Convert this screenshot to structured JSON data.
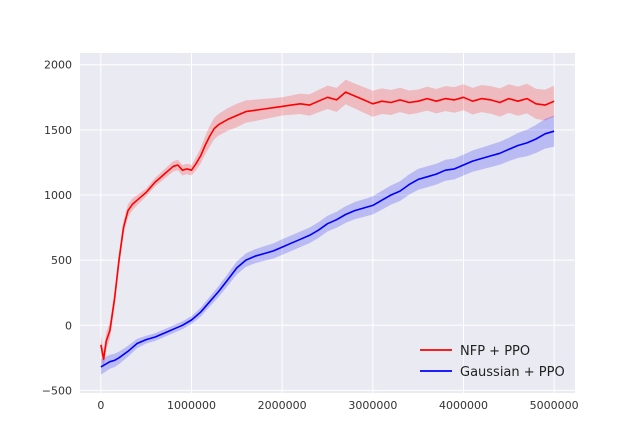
{
  "chart_data": {
    "type": "line",
    "title": "",
    "xlabel": "",
    "ylabel": "",
    "xlim": [
      -230000,
      5230000
    ],
    "ylim": [
      -520,
      2090
    ],
    "grid": true,
    "legend_position": "bottom-right",
    "x_ticks": [
      0,
      1000000,
      2000000,
      3000000,
      4000000,
      5000000
    ],
    "x_tick_labels": [
      "0",
      "1000000",
      "2000000",
      "3000000",
      "4000000",
      "5000000"
    ],
    "y_ticks": [
      -500,
      0,
      500,
      1000,
      1500,
      2000
    ],
    "y_tick_labels": [
      "−500",
      "0",
      "500",
      "1000",
      "1500",
      "2000"
    ],
    "series": [
      {
        "name": "NFP + PPO",
        "color": "#ff0000",
        "band_color": "#ff0000",
        "points": [
          [
            0,
            -150
          ],
          [
            30000,
            -260
          ],
          [
            60000,
            -120
          ],
          [
            100000,
            -40
          ],
          [
            150000,
            200
          ],
          [
            200000,
            500
          ],
          [
            250000,
            750
          ],
          [
            300000,
            880
          ],
          [
            350000,
            930
          ],
          [
            400000,
            960
          ],
          [
            450000,
            990
          ],
          [
            500000,
            1020
          ],
          [
            550000,
            1060
          ],
          [
            600000,
            1100
          ],
          [
            650000,
            1130
          ],
          [
            700000,
            1160
          ],
          [
            750000,
            1190
          ],
          [
            800000,
            1220
          ],
          [
            850000,
            1230
          ],
          [
            900000,
            1190
          ],
          [
            950000,
            1200
          ],
          [
            1000000,
            1190
          ],
          [
            1050000,
            1240
          ],
          [
            1100000,
            1300
          ],
          [
            1150000,
            1380
          ],
          [
            1200000,
            1450
          ],
          [
            1250000,
            1510
          ],
          [
            1300000,
            1540
          ],
          [
            1400000,
            1580
          ],
          [
            1500000,
            1610
          ],
          [
            1600000,
            1640
          ],
          [
            1700000,
            1650
          ],
          [
            1800000,
            1660
          ],
          [
            1900000,
            1670
          ],
          [
            2000000,
            1680
          ],
          [
            2100000,
            1690
          ],
          [
            2200000,
            1700
          ],
          [
            2300000,
            1690
          ],
          [
            2400000,
            1720
          ],
          [
            2500000,
            1750
          ],
          [
            2600000,
            1730
          ],
          [
            2700000,
            1790
          ],
          [
            2800000,
            1760
          ],
          [
            2900000,
            1730
          ],
          [
            3000000,
            1700
          ],
          [
            3100000,
            1720
          ],
          [
            3200000,
            1710
          ],
          [
            3300000,
            1730
          ],
          [
            3400000,
            1710
          ],
          [
            3500000,
            1720
          ],
          [
            3600000,
            1740
          ],
          [
            3700000,
            1720
          ],
          [
            3800000,
            1740
          ],
          [
            3900000,
            1730
          ],
          [
            4000000,
            1750
          ],
          [
            4100000,
            1720
          ],
          [
            4200000,
            1740
          ],
          [
            4300000,
            1730
          ],
          [
            4400000,
            1710
          ],
          [
            4500000,
            1740
          ],
          [
            4600000,
            1720
          ],
          [
            4700000,
            1740
          ],
          [
            4800000,
            1700
          ],
          [
            4900000,
            1690
          ],
          [
            5000000,
            1720
          ]
        ],
        "band": [
          [
            0,
            70
          ],
          [
            200000,
            60
          ],
          [
            500000,
            30
          ],
          [
            800000,
            40
          ],
          [
            1000000,
            40
          ],
          [
            1200000,
            80
          ],
          [
            1500000,
            90
          ],
          [
            2000000,
            70
          ],
          [
            2500000,
            90
          ],
          [
            3000000,
            100
          ],
          [
            3500000,
            90
          ],
          [
            4000000,
            100
          ],
          [
            4500000,
            110
          ],
          [
            5000000,
            120
          ]
        ]
      },
      {
        "name": "Gaussian + PPO",
        "color": "#0000ff",
        "band_color": "#0000ff",
        "points": [
          [
            0,
            -320
          ],
          [
            50000,
            -300
          ],
          [
            100000,
            -280
          ],
          [
            150000,
            -270
          ],
          [
            200000,
            -250
          ],
          [
            300000,
            -200
          ],
          [
            400000,
            -140
          ],
          [
            500000,
            -110
          ],
          [
            600000,
            -90
          ],
          [
            700000,
            -60
          ],
          [
            800000,
            -30
          ],
          [
            900000,
            0
          ],
          [
            1000000,
            40
          ],
          [
            1100000,
            100
          ],
          [
            1200000,
            180
          ],
          [
            1300000,
            260
          ],
          [
            1400000,
            350
          ],
          [
            1500000,
            440
          ],
          [
            1600000,
            500
          ],
          [
            1700000,
            530
          ],
          [
            1800000,
            550
          ],
          [
            1900000,
            570
          ],
          [
            2000000,
            600
          ],
          [
            2100000,
            630
          ],
          [
            2200000,
            660
          ],
          [
            2300000,
            690
          ],
          [
            2400000,
            730
          ],
          [
            2500000,
            780
          ],
          [
            2600000,
            810
          ],
          [
            2700000,
            850
          ],
          [
            2800000,
            880
          ],
          [
            2900000,
            900
          ],
          [
            3000000,
            920
          ],
          [
            3100000,
            960
          ],
          [
            3200000,
            1000
          ],
          [
            3300000,
            1030
          ],
          [
            3400000,
            1080
          ],
          [
            3500000,
            1120
          ],
          [
            3600000,
            1140
          ],
          [
            3700000,
            1160
          ],
          [
            3800000,
            1190
          ],
          [
            3900000,
            1200
          ],
          [
            4000000,
            1230
          ],
          [
            4100000,
            1260
          ],
          [
            4200000,
            1280
          ],
          [
            4300000,
            1300
          ],
          [
            4400000,
            1320
          ],
          [
            4500000,
            1350
          ],
          [
            4600000,
            1380
          ],
          [
            4700000,
            1400
          ],
          [
            4800000,
            1430
          ],
          [
            4900000,
            1470
          ],
          [
            5000000,
            1490
          ]
        ],
        "band": [
          [
            0,
            60
          ],
          [
            500000,
            30
          ],
          [
            1000000,
            30
          ],
          [
            1500000,
            50
          ],
          [
            2000000,
            60
          ],
          [
            2500000,
            60
          ],
          [
            3000000,
            70
          ],
          [
            3500000,
            80
          ],
          [
            4000000,
            80
          ],
          [
            4500000,
            90
          ],
          [
            5000000,
            120
          ]
        ]
      }
    ]
  }
}
